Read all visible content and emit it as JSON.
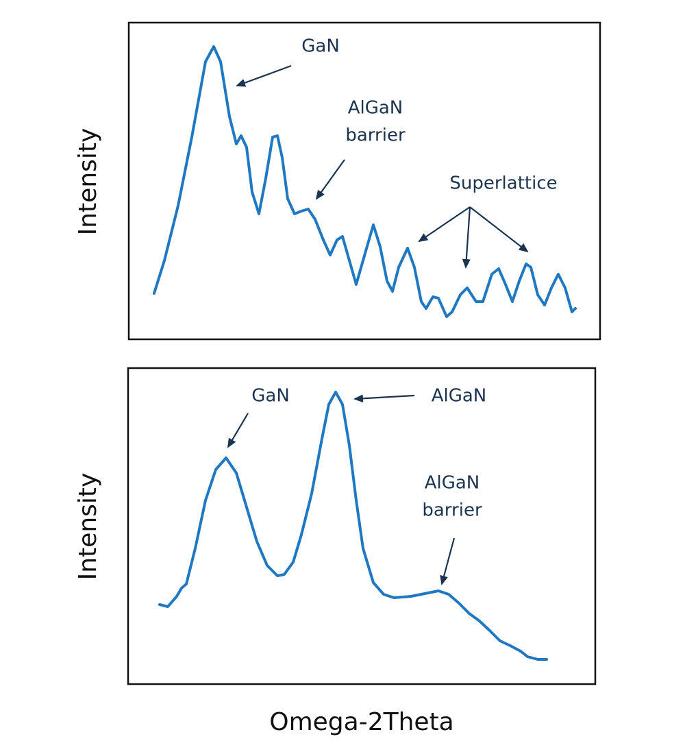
{
  "panels": [
    {
      "y_label": "Intensity",
      "annotations": [
        {
          "lines": [
            "GaN"
          ]
        },
        {
          "lines": [
            "AlGaN",
            "barrier"
          ]
        },
        {
          "lines": [
            "Superlattice"
          ]
        }
      ]
    },
    {
      "y_label": "Intensity",
      "annotations": [
        {
          "lines": [
            "GaN"
          ]
        },
        {
          "lines": [
            "AlGaN"
          ]
        },
        {
          "lines": [
            "AlGaN",
            "barrier"
          ]
        }
      ]
    }
  ],
  "x_label": "Omega-2Theta"
}
